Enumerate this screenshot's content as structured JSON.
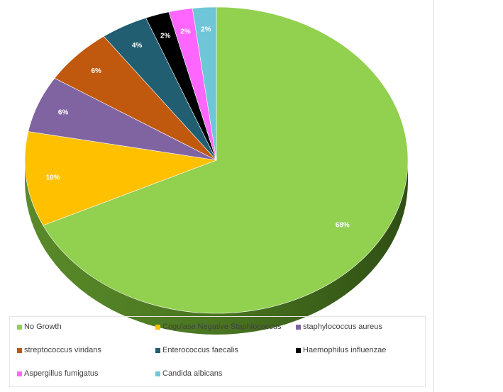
{
  "chart_data": {
    "type": "pie",
    "title": "",
    "categories": [
      "No Growth",
      "Cogulase Negative Staphlococcus",
      "staphylococcus aureus",
      "streptococcus viridans",
      "Enterococcus faecalis",
      "Haemophilus influenzae",
      "Aspergillus fumigatus",
      "Candida albicans"
    ],
    "values": [
      68,
      10,
      6,
      6,
      4,
      2,
      2,
      2
    ],
    "labels": [
      "68%",
      "10%",
      "6%",
      "6%",
      "4%",
      "2%",
      "2%",
      "2%"
    ],
    "colors": [
      "#92d050",
      "#ffc000",
      "#8064a2",
      "#c0580d",
      "#215e71",
      "#000000",
      "#ff66ff",
      "#6ec6d8"
    ],
    "legend_position": "bottom",
    "three_d": true
  }
}
